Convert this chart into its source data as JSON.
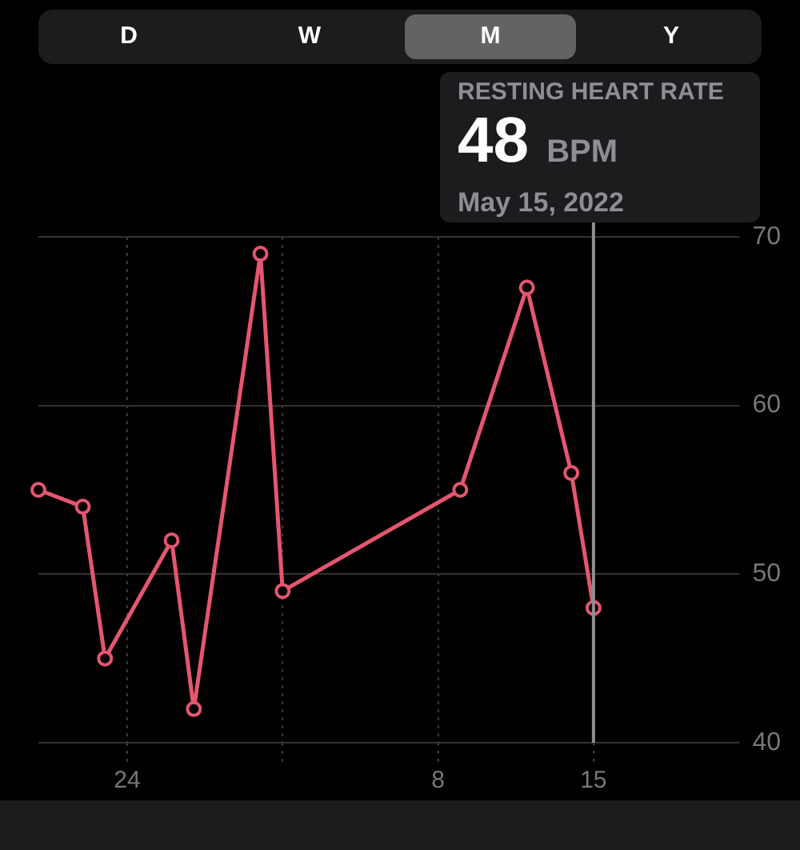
{
  "chart_data": {
    "type": "line",
    "title": "RESTING HEART RATE",
    "subtitle": "May 15, 2022",
    "x": [
      "2022-04-20",
      "2022-04-22",
      "2022-04-23",
      "2022-04-26",
      "2022-04-27",
      "2022-04-30",
      "2022-05-01",
      "2022-05-09",
      "2022-05-12",
      "2022-05-14",
      "2022-05-15"
    ],
    "series": [
      {
        "color": "#e5566f",
        "values": [
          55,
          54,
          45,
          52,
          42,
          69,
          49,
          55,
          67,
          56,
          48
        ]
      }
    ],
    "xlim": [
      "2022-04-20",
      "2022-05-21"
    ],
    "xticks": [
      {
        "value": "2022-04-24",
        "label": "24"
      },
      {
        "value": "2022-05-01",
        "label": null
      },
      {
        "value": "2022-05-08",
        "label": "8"
      },
      {
        "value": "2022-05-15",
        "label": "15"
      }
    ],
    "ylim": [
      40,
      70
    ],
    "yticks": [
      40,
      50,
      60,
      70
    ],
    "grid": true,
    "legend": false,
    "marker": "circle",
    "line_style": "solid",
    "ref_lines": [
      {
        "axis": "x",
        "value": "2022-05-15",
        "color": "#8e8e93"
      }
    ],
    "annotations": [
      "D",
      "W",
      "M",
      "Y",
      "48 BPM"
    ]
  }
}
